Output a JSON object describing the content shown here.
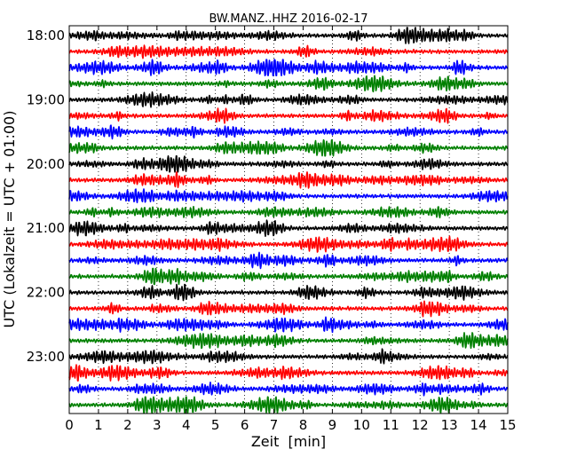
{
  "chart_data": {
    "type": "line",
    "title": "BW.MANZ..HHZ 2016-02-17",
    "xlabel": "Zeit  [min]",
    "ylabel": "UTC (Lokalzeit = UTC + 01:00)",
    "xlim": [
      0,
      15
    ],
    "x_ticks": [
      "0",
      "1",
      "2",
      "3",
      "4",
      "5",
      "6",
      "7",
      "8",
      "9",
      "10",
      "11",
      "12",
      "13",
      "14",
      "15"
    ],
    "y_tick_labels": [
      "18:00",
      "19:00",
      "20:00",
      "21:00",
      "22:00",
      "23:00"
    ],
    "grid": "vertical dotted",
    "colors": [
      "#000000",
      "#ff0000",
      "#0000ff",
      "#008000"
    ],
    "trace_minutes_per_line": 15,
    "traces": [
      {
        "label_time": "18:00",
        "color": "#000000"
      },
      {
        "label_time": "18:15",
        "color": "#ff0000"
      },
      {
        "label_time": "18:30",
        "color": "#0000ff"
      },
      {
        "label_time": "18:45",
        "color": "#008000"
      },
      {
        "label_time": "19:00",
        "color": "#000000"
      },
      {
        "label_time": "19:15",
        "color": "#ff0000"
      },
      {
        "label_time": "19:30",
        "color": "#0000ff"
      },
      {
        "label_time": "19:45",
        "color": "#008000"
      },
      {
        "label_time": "20:00",
        "color": "#000000"
      },
      {
        "label_time": "20:15",
        "color": "#ff0000"
      },
      {
        "label_time": "20:30",
        "color": "#0000ff"
      },
      {
        "label_time": "20:45",
        "color": "#008000"
      },
      {
        "label_time": "21:00",
        "color": "#000000"
      },
      {
        "label_time": "21:15",
        "color": "#ff0000"
      },
      {
        "label_time": "21:30",
        "color": "#0000ff"
      },
      {
        "label_time": "21:45",
        "color": "#008000"
      },
      {
        "label_time": "22:00",
        "color": "#000000"
      },
      {
        "label_time": "22:15",
        "color": "#ff0000"
      },
      {
        "label_time": "22:30",
        "color": "#0000ff"
      },
      {
        "label_time": "22:45",
        "color": "#008000"
      },
      {
        "label_time": "23:00",
        "color": "#000000"
      },
      {
        "label_time": "23:15",
        "color": "#ff0000"
      },
      {
        "label_time": "23:30",
        "color": "#0000ff"
      },
      {
        "label_time": "23:45",
        "color": "#008000"
      }
    ]
  }
}
